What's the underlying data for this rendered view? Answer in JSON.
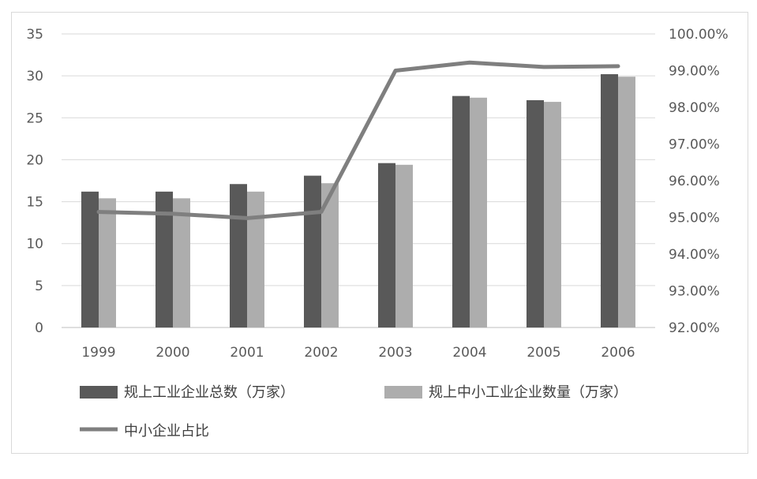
{
  "chart_data": {
    "type": "bar",
    "title": "",
    "xlabel": "",
    "ylabel": "",
    "categories": [
      "1999",
      "2000",
      "2001",
      "2002",
      "2003",
      "2004",
      "2005",
      "2006"
    ],
    "ylim": [
      0,
      35
    ],
    "yticks": [
      "0",
      "5",
      "10",
      "15",
      "20",
      "25",
      "30",
      "35"
    ],
    "y2lim": [
      0.92,
      1.0
    ],
    "y2ticks": [
      "92.00%",
      "93.00%",
      "94.00%",
      "95.00%",
      "96.00%",
      "97.00%",
      "98.00%",
      "99.00%",
      "100.00%"
    ],
    "series": [
      {
        "name": "规上工业企业总数（万家）",
        "type": "bar",
        "axis": "left",
        "color": "#595959",
        "values": [
          16.2,
          16.2,
          17.1,
          18.1,
          19.6,
          27.6,
          27.1,
          30.2
        ]
      },
      {
        "name": "规上中小工业企业数量（万家）",
        "type": "bar",
        "axis": "left",
        "color": "#adadad",
        "values": [
          15.4,
          15.4,
          16.2,
          17.2,
          19.4,
          27.4,
          26.9,
          29.9
        ]
      },
      {
        "name": "中小企业占比",
        "type": "line",
        "axis": "right",
        "color": "#7f7f7f",
        "values": [
          0.9515,
          0.951,
          0.9498,
          0.9515,
          0.99,
          0.9922,
          0.991,
          0.9912
        ]
      }
    ],
    "grid": true,
    "legend_position": "bottom"
  }
}
